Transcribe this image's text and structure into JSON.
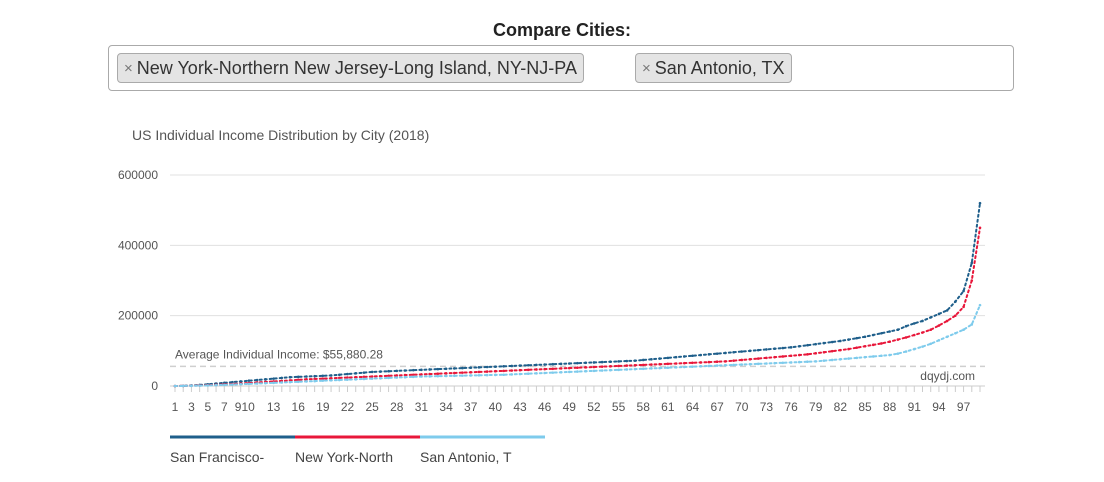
{
  "header": {
    "title": "Compare Cities:"
  },
  "selector": {
    "tags": [
      {
        "label": "New York-Northern New Jersey-Long Island, NY-NJ-PA",
        "remove": "×"
      },
      {
        "label": "San Antonio, TX",
        "remove": "×"
      }
    ]
  },
  "chart_data": {
    "type": "line",
    "title": "US Individual Income Distribution by City (2018)",
    "xlabel": "",
    "ylabel": "",
    "ylim": [
      0,
      600000
    ],
    "yticks": [
      "0",
      "200000",
      "400000",
      "600000"
    ],
    "x": [
      1,
      2,
      3,
      4,
      5,
      6,
      7,
      8,
      9,
      10,
      11,
      12,
      13,
      14,
      15,
      16,
      17,
      18,
      19,
      20,
      21,
      22,
      23,
      24,
      25,
      26,
      27,
      28,
      29,
      30,
      31,
      32,
      33,
      34,
      35,
      36,
      37,
      38,
      39,
      40,
      41,
      42,
      43,
      44,
      45,
      46,
      47,
      48,
      49,
      50,
      51,
      52,
      53,
      54,
      55,
      56,
      57,
      58,
      59,
      60,
      61,
      62,
      63,
      64,
      65,
      66,
      67,
      68,
      69,
      70,
      71,
      72,
      73,
      74,
      75,
      76,
      77,
      78,
      79,
      80,
      81,
      82,
      83,
      84,
      85,
      86,
      87,
      88,
      89,
      90,
      91,
      92,
      93,
      94,
      95,
      96,
      97,
      98,
      99
    ],
    "xtick_labels": [
      "1",
      "3",
      "5",
      "7",
      "910",
      "13",
      "16",
      "19",
      "22",
      "25",
      "28",
      "31",
      "34",
      "37",
      "40",
      "43",
      "46",
      "49",
      "52",
      "55",
      "58",
      "61",
      "64",
      "67",
      "70",
      "73",
      "76",
      "79",
      "82",
      "85",
      "88",
      "91",
      "94",
      "97"
    ],
    "reference_line": {
      "label": "Average Individual Income: $55,880.28",
      "value": 55880.28
    },
    "watermark": "dqydj.com",
    "legend_position": "bottom-left",
    "series": [
      {
        "name": "San Francisco-",
        "color": "#1f5f8b",
        "values": [
          0,
          500,
          1500,
          3000,
          5000,
          7000,
          9000,
          11000,
          13000,
          15000,
          17000,
          19000,
          21000,
          23000,
          25000,
          26000,
          27000,
          28000,
          29000,
          30000,
          32000,
          34000,
          36000,
          38000,
          40000,
          41000,
          42000,
          43000,
          44000,
          45000,
          46000,
          47000,
          48000,
          49000,
          50000,
          51000,
          52000,
          53000,
          54000,
          55000,
          56000,
          57000,
          58000,
          59000,
          60000,
          61000,
          62000,
          63000,
          64000,
          65000,
          66000,
          67000,
          68000,
          69000,
          70000,
          71000,
          72000,
          74000,
          76000,
          78000,
          80000,
          82000,
          84000,
          86000,
          88000,
          90000,
          92000,
          94000,
          96000,
          98000,
          100000,
          102000,
          104000,
          106000,
          108000,
          110000,
          113000,
          116000,
          119000,
          122000,
          125000,
          128000,
          132000,
          136000,
          140000,
          145000,
          150000,
          155000,
          160000,
          170000,
          178000,
          185000,
          195000,
          205000,
          215000,
          240000,
          270000,
          350000,
          520000
        ]
      },
      {
        "name": "New York-North",
        "color": "#e8173a",
        "values": [
          0,
          300,
          800,
          1500,
          2500,
          3500,
          4500,
          5500,
          7000,
          8500,
          10000,
          11500,
          13000,
          14500,
          16000,
          17500,
          19000,
          20000,
          21000,
          22000,
          23000,
          24000,
          25000,
          26000,
          27000,
          28000,
          29000,
          30000,
          31000,
          32000,
          33000,
          34000,
          35000,
          36000,
          37000,
          38000,
          39000,
          40000,
          41000,
          42000,
          43000,
          44000,
          45000,
          46000,
          47000,
          48000,
          49000,
          50000,
          51000,
          52000,
          53000,
          54000,
          55000,
          56000,
          57000,
          58000,
          59000,
          60000,
          61000,
          62000,
          63000,
          64000,
          65000,
          66000,
          67000,
          68000,
          69000,
          70000,
          72000,
          74000,
          76000,
          78000,
          80000,
          82000,
          84000,
          86000,
          88000,
          90000,
          93000,
          96000,
          99000,
          102000,
          105000,
          109000,
          113000,
          117000,
          121000,
          126000,
          132000,
          138000,
          145000,
          152000,
          160000,
          172000,
          185000,
          200000,
          225000,
          300000,
          450000
        ]
      },
      {
        "name": "San Antonio, T",
        "color": "#7ecbec",
        "values": [
          0,
          200,
          500,
          1000,
          1600,
          2400,
          3200,
          4000,
          5000,
          6000,
          7000,
          8000,
          9000,
          10000,
          11000,
          12000,
          13000,
          14000,
          15000,
          16000,
          17000,
          18000,
          19000,
          20000,
          21000,
          22000,
          23000,
          24000,
          25000,
          26000,
          27000,
          27500,
          28000,
          28500,
          29000,
          29500,
          30000,
          30500,
          31000,
          31500,
          32000,
          33000,
          34000,
          35000,
          36000,
          37000,
          38000,
          39000,
          40000,
          41000,
          42000,
          43000,
          44000,
          45000,
          46000,
          47000,
          48000,
          49000,
          50000,
          51000,
          52000,
          53000,
          54000,
          55000,
          56000,
          57000,
          58000,
          59000,
          60000,
          61000,
          62000,
          63000,
          64000,
          65000,
          66000,
          67000,
          68000,
          69000,
          70000,
          72000,
          74000,
          76000,
          78000,
          80000,
          82000,
          84000,
          86000,
          88000,
          92000,
          98000,
          105000,
          112000,
          120000,
          130000,
          140000,
          150000,
          160000,
          175000,
          230000
        ]
      }
    ]
  }
}
